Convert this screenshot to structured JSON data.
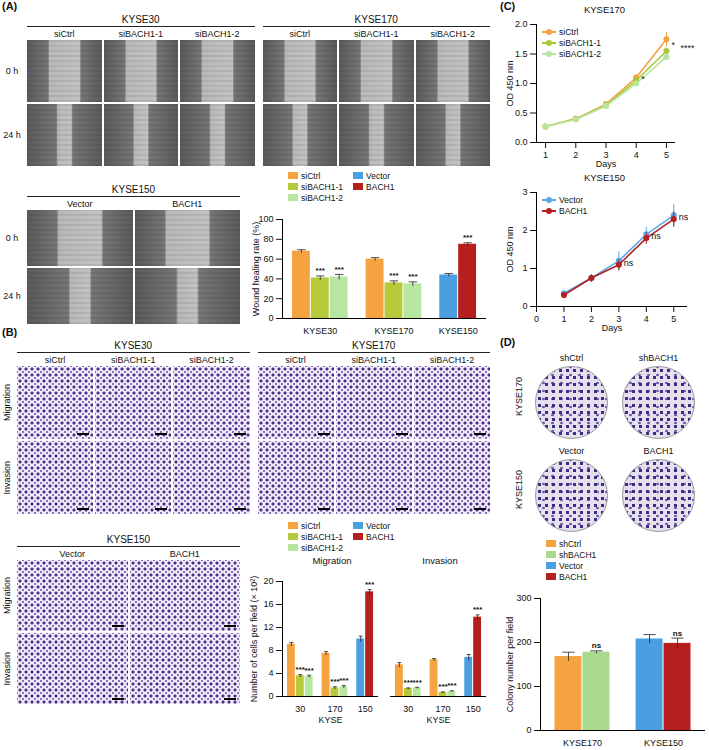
{
  "panel_labels": [
    "(A)",
    "(B)",
    "(C)",
    "(D)"
  ],
  "image_panels": [
    {
      "rows": [
        "0 h",
        "24 h"
      ],
      "groups": [
        {
          "title": "KYSE30",
          "columns": [
            "siCtrl",
            "siBACH1-1",
            "siBACH1-2"
          ]
        },
        {
          "title": "KYSE170",
          "columns": [
            "siCtrl",
            "siBACH1-1",
            "siBACH1-2"
          ]
        }
      ]
    },
    {
      "rows": [
        "0 h",
        "24 h"
      ],
      "groups": [
        {
          "title": "KYSE150",
          "columns": [
            "Vector",
            "BACH1"
          ]
        }
      ]
    },
    {
      "rows": [
        "Migration",
        "Invasion"
      ],
      "groups": [
        {
          "title": "KYSE30",
          "columns": [
            "siCtrl",
            "siBACH1-1",
            "siBACH1-2"
          ]
        },
        {
          "title": "KYSE170",
          "columns": [
            "siCtrl",
            "siBACH1-1",
            "siBACH1-2"
          ]
        }
      ]
    },
    {
      "rows": [
        "Migration",
        "Invasion"
      ],
      "groups": [
        {
          "title": "KYSE150",
          "columns": [
            "Vector",
            "BACH1"
          ]
        }
      ]
    },
    {
      "rows": [
        "KYSE170",
        "KYSE150"
      ],
      "groups": [
        {
          "columns": [
            "shCtrl",
            "shBACH1"
          ]
        },
        {
          "columns": [
            "Vector",
            "BACH1"
          ]
        }
      ]
    }
  ],
  "chart_data": [
    {
      "type": "bar",
      "ylabel": "Wound healing rate (%)",
      "categories": [
        "KYSE30",
        "KYSE170",
        "KYSE150"
      ],
      "ylim": [
        0,
        100
      ],
      "yticks": [
        0,
        20,
        40,
        60,
        80,
        100
      ],
      "legend": "top",
      "series": [
        {
          "name": "siCtrl",
          "color": "#f4a340",
          "values": [
            68,
            60,
            null
          ],
          "errors": [
            1.5,
            1.5,
            null
          ]
        },
        {
          "name": "siBACH1-1",
          "color": "#b5c93a",
          "values": [
            41,
            36,
            null
          ],
          "errors": [
            2,
            2,
            null
          ],
          "significance": [
            "***",
            "***",
            null
          ]
        },
        {
          "name": "siBACH1-2",
          "color": "#b7e6a0",
          "values": [
            42,
            35,
            null
          ],
          "errors": [
            2.5,
            2,
            null
          ],
          "significance": [
            "***",
            "***",
            null
          ]
        },
        {
          "name": "Vector",
          "color": "#4a9fe0",
          "values": [
            null,
            null,
            44
          ],
          "errors": [
            null,
            null,
            1.5
          ]
        },
        {
          "name": "BACH1",
          "color": "#b5201f",
          "values": [
            null,
            null,
            75
          ],
          "errors": [
            null,
            null,
            1.5
          ],
          "significance": [
            null,
            null,
            "***"
          ]
        }
      ]
    },
    {
      "type": "bar",
      "title": "Migration",
      "xlabel": "KYSE",
      "ylabel": "Number of cells per field (× 10²)",
      "categories": [
        "30",
        "170",
        "150"
      ],
      "ylim": [
        0,
        20
      ],
      "yticks": [
        0,
        4,
        8,
        12,
        16,
        20
      ],
      "legend": "top",
      "series": [
        {
          "name": "siCtrl",
          "color": "#f4a340",
          "values": [
            9.1,
            7.5,
            null
          ],
          "errors": [
            0.3,
            0.3,
            null
          ]
        },
        {
          "name": "siBACH1-1",
          "color": "#b5c93a",
          "values": [
            3.6,
            1.5,
            null
          ],
          "errors": [
            0.2,
            0.2,
            null
          ],
          "significance": [
            "***",
            "***",
            null
          ]
        },
        {
          "name": "siBACH1-2",
          "color": "#b7e6a0",
          "values": [
            3.5,
            1.7,
            null
          ],
          "errors": [
            0.2,
            0.2,
            null
          ],
          "significance": [
            "***",
            "***",
            null
          ]
        },
        {
          "name": "Vector",
          "color": "#4a9fe0",
          "values": [
            null,
            null,
            10.0
          ],
          "errors": [
            null,
            null,
            0.5
          ]
        },
        {
          "name": "BACH1",
          "color": "#b5201f",
          "values": [
            null,
            null,
            18.2
          ],
          "errors": [
            null,
            null,
            0.4
          ],
          "significance": [
            null,
            null,
            "***"
          ]
        }
      ]
    },
    {
      "type": "bar",
      "title": "Invasion",
      "xlabel": "KYSE",
      "categories": [
        "30",
        "170",
        "150"
      ],
      "ylim": [
        0,
        20
      ],
      "tick_labels": "x",
      "series": [
        {
          "name": "siCtrl",
          "color": "#f4a340",
          "values": [
            5.5,
            6.4,
            null
          ],
          "errors": [
            0.4,
            0.2,
            null
          ]
        },
        {
          "name": "siBACH1-1",
          "color": "#b5c93a",
          "values": [
            1.4,
            0.7,
            null
          ],
          "errors": [
            0.1,
            0.1,
            null
          ],
          "significance": [
            "***",
            "***",
            null
          ]
        },
        {
          "name": "siBACH1-2",
          "color": "#b7e6a0",
          "values": [
            1.5,
            0.9,
            null
          ],
          "errors": [
            0.1,
            0.1,
            null
          ],
          "significance": [
            "***",
            "***",
            null
          ]
        },
        {
          "name": "Vector",
          "color": "#4a9fe0",
          "values": [
            null,
            null,
            6.8
          ],
          "errors": [
            null,
            null,
            0.5
          ]
        },
        {
          "name": "BACH1",
          "color": "#b5201f",
          "values": [
            null,
            null,
            13.8
          ],
          "errors": [
            null,
            null,
            0.4
          ],
          "significance": [
            null,
            null,
            "***"
          ]
        }
      ]
    },
    {
      "type": "line",
      "title": "KYSE170",
      "xlabel": "Days",
      "ylabel": "OD 450 nm",
      "x": [
        1,
        2,
        3,
        4,
        5
      ],
      "xlim": [
        0.7,
        5.3
      ],
      "xticks": [
        1,
        2,
        3,
        4,
        5
      ],
      "ylim": [
        0,
        2
      ],
      "yticks": [
        {
          "value": 0,
          "label": "0.0"
        },
        0.5,
        {
          "value": 1,
          "label": "1.0"
        },
        1.5,
        {
          "value": 2,
          "label": "2.0"
        }
      ],
      "legend": "top-left",
      "series": [
        {
          "name": "siCtrl",
          "color": "#f4a340",
          "marker": "circle",
          "values": [
            0.27,
            0.4,
            0.65,
            1.1,
            1.75
          ],
          "errors": [
            0.01,
            0.02,
            0.03,
            0.05,
            0.12
          ]
        },
        {
          "name": "siBACH1-1",
          "color": "#a9c93a",
          "marker": "circle",
          "values": [
            0.27,
            0.4,
            0.63,
            1.05,
            1.55
          ],
          "errors": [
            0.01,
            0.02,
            0.02,
            0.04,
            0.06
          ]
        },
        {
          "name": "siBACH1-2",
          "color": "#b7e6a0",
          "marker": "circle",
          "values": [
            0.27,
            0.39,
            0.62,
            1.0,
            1.45
          ],
          "errors": [
            0.01,
            0.02,
            0.02,
            0.04,
            0.05
          ]
        }
      ],
      "annotations": [
        {
          "x": 4,
          "text": "*",
          "series": [
            "siCtrl",
            "siBACH1-1"
          ]
        },
        {
          "x": 5,
          "text": "*",
          "series": [
            "siCtrl",
            "siBACH1-1"
          ]
        },
        {
          "x": 5,
          "text": "****",
          "series": [
            "siCtrl",
            "siBACH1-2"
          ]
        }
      ]
    },
    {
      "type": "line",
      "title": "KYSE150",
      "xlabel": "Days",
      "ylabel": "OD 450 nm",
      "x": [
        1,
        2,
        3,
        4,
        5
      ],
      "xlim": [
        0,
        5.5
      ],
      "xticks": [
        0,
        1,
        2,
        3,
        4,
        5
      ],
      "ylim": [
        0,
        3
      ],
      "yticks": [
        0,
        1,
        2,
        3
      ],
      "legend": "top-left",
      "series": [
        {
          "name": "Vector",
          "color": "#5aa9e6",
          "marker": "circle",
          "values": [
            0.35,
            0.75,
            1.2,
            1.9,
            2.4
          ],
          "errors": [
            0.05,
            0.1,
            0.25,
            0.2,
            0.3
          ]
        },
        {
          "name": "BACH1",
          "color": "#b5201f",
          "marker": "circle",
          "values": [
            0.3,
            0.75,
            1.1,
            1.8,
            2.3
          ],
          "errors": [
            0.05,
            0.1,
            0.15,
            0.15,
            0.2
          ]
        }
      ],
      "annotations": [
        {
          "x": 3,
          "text": "ns",
          "series": [
            "Vector",
            "BACH1"
          ]
        },
        {
          "x": 4,
          "text": "ns",
          "series": [
            "Vector",
            "BACH1"
          ]
        },
        {
          "x": 5,
          "text": "ns",
          "series": [
            "Vector",
            "BACH1"
          ]
        }
      ]
    },
    {
      "type": "bar",
      "ylabel": "Colony number per field",
      "categories": [
        "KYSE170",
        "KYSE150"
      ],
      "ylim": [
        0,
        300
      ],
      "yticks": [
        0,
        100,
        200,
        300
      ],
      "legend": "top",
      "series": [
        {
          "name": "shCtrl",
          "color": "#f4a340",
          "values": [
            168,
            null
          ],
          "errors": [
            10,
            null
          ]
        },
        {
          "name": "shBACH1",
          "color": "#a9d98f",
          "values": [
            178,
            null
          ],
          "errors": [
            3,
            null
          ],
          "significance": [
            "ns",
            null
          ]
        },
        {
          "name": "Vector",
          "color": "#4a9fe0",
          "values": [
            null,
            208
          ],
          "errors": [
            null,
            10
          ]
        },
        {
          "name": "BACH1",
          "color": "#b5201f",
          "values": [
            null,
            198
          ],
          "errors": [
            null,
            12
          ],
          "significance": [
            null,
            "ns"
          ]
        }
      ]
    }
  ]
}
